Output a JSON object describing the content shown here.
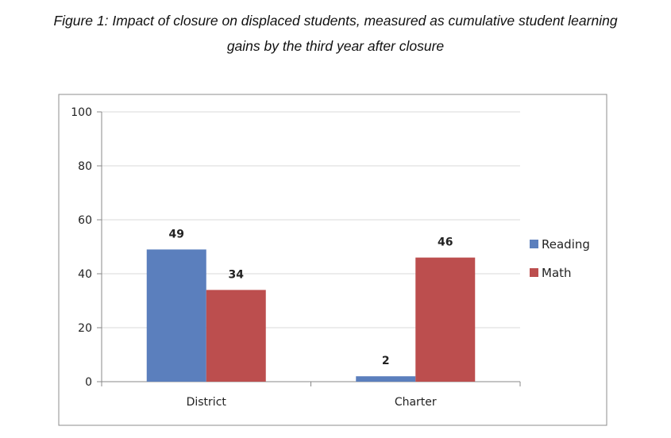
{
  "figure": {
    "caption_line1": "Figure 1: Impact of closure on displaced students, measured as cumulative student learning",
    "caption_line2": "gains by the third year after closure"
  },
  "chart_data": {
    "type": "bar",
    "categories": [
      "District",
      "Charter"
    ],
    "series": [
      {
        "name": "Reading",
        "values": [
          49,
          2
        ],
        "color": "#5b7fbd"
      },
      {
        "name": "Math",
        "values": [
          34,
          46
        ],
        "color": "#bc4e4e"
      }
    ],
    "ylim": [
      0,
      100
    ],
    "yticks": [
      0,
      20,
      40,
      60,
      80,
      100
    ],
    "grid": true,
    "legend": "right",
    "data_labels": true
  }
}
